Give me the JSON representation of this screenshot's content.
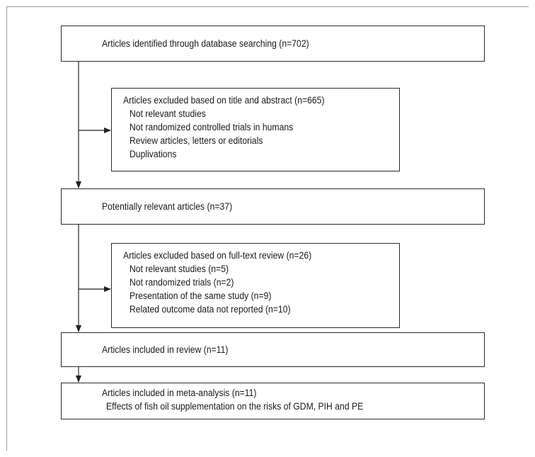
{
  "flow": {
    "identified": "Articles identified through database searching (n=702)",
    "excluded1": {
      "title": "Articles excluded based on title and abstract (n=665)",
      "items": [
        "Not relevant studies",
        "Not randomized controlled trials in humans",
        "Review articles, letters or editorials",
        "Duplivations"
      ]
    },
    "relevant": "Potentially relevant articles (n=37)",
    "excluded2": {
      "title": "Articles excluded based on full-text review (n=26)",
      "items": [
        "Not relevant studies (n=5)",
        "Not randomized trials (n=2)",
        "Presentation of the same study (n=9)",
        "Related outcome data not reported (n=10)"
      ]
    },
    "review": "Articles included in review (n=11)",
    "meta": {
      "title": "Articles included in meta-analysis (n=11)",
      "detail": "Effects of fish oil supplementation on the risks of GDM, PIH and PE"
    }
  }
}
